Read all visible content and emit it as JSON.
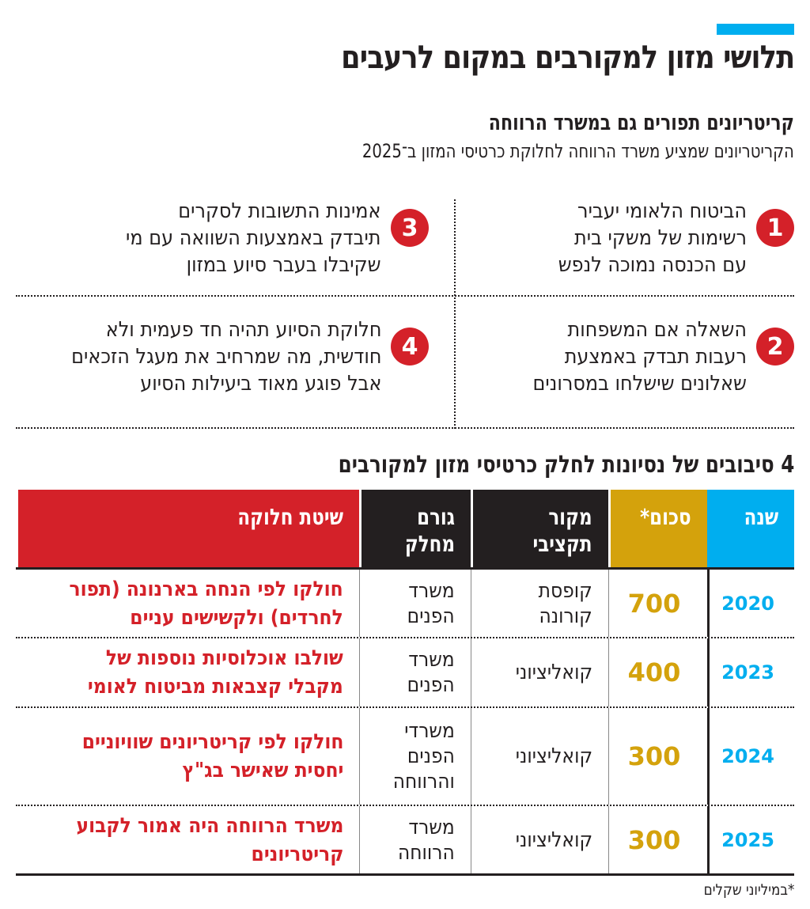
{
  "header": {
    "accent_color": "#00aeef",
    "title": "תלושי מזון למקורבים במקום לרעבים"
  },
  "subheader": {
    "title": "קריטריונים תפורים גם במשרד הרווחה",
    "description": "הקריטריונים שמציע משרד הרווחה לחלוקת כרטיסי המזון ב־2025"
  },
  "criteria": [
    {
      "number": "1",
      "text": "הביטוח הלאומי יעביר\nרשימות של משקי בית\nעם הכנסה נמוכה לנפש"
    },
    {
      "number": "2",
      "text": "השאלה אם המשפחות\nרעבות תבדק באמצעת\nשאלונים שישלחו במסרונים"
    },
    {
      "number": "3",
      "text": "אמינות התשובות לסקרים\nתיבדק באמצעות השוואה עם מי\nשקיבלו בעבר סיוע במזון"
    },
    {
      "number": "4",
      "text": "חלוקת הסיוע תהיה חד פעמית ולא\nחודשית, מה שמרחיב את מעגל הזכאים\nאבל פוגע מאוד ביעילות הסיוע"
    }
  ],
  "table": {
    "title": "4 סיבובים של נסיונות לחלק כרטיסי מזון  למקורבים",
    "headers": {
      "year": "שנה",
      "sum": "סכום*",
      "source": "מקור\nתקציבי",
      "distributor": "גורם\nמחלק",
      "method": "שיטת חלוקה"
    },
    "colors": {
      "year": "#00aeef",
      "sum": "#d4a20c",
      "source": "#231f20",
      "distributor": "#231f20",
      "method": "#d42129"
    },
    "rows": [
      {
        "year": "2020",
        "sum": "700",
        "source": "קופסת\nקורונה",
        "distributor": "משרד\nהפנים",
        "method": "חולקו לפי הנחה בארנונה (תפור\nלחרדים) ולקשישים עניים"
      },
      {
        "year": "2023",
        "sum": "400",
        "source": "קואליציוני",
        "distributor": "משרד\nהפנים",
        "method": "שולבו אוכלוסיות נוספות של\nמקבלי קצבאות מביטוח לאומי"
      },
      {
        "year": "2024",
        "sum": "300",
        "source": "קואליציוני",
        "distributor": "משרדי\nהפנים\nוהרווחה",
        "method": "חולקו לפי קריטריונים שוויוניים\nיחסית שאישר בג\"ץ"
      },
      {
        "year": "2025",
        "sum": "300",
        "source": "קואליציוני",
        "distributor": "משרד\nהרווחה",
        "method": "משרד הרווחה היה אמור לקבוע\nקריטריונים"
      }
    ],
    "footnote": "*במיליוני שקלים"
  },
  "chart_data": {
    "type": "table",
    "title": "4 סיבובים של נסיונות לחלק כרטיסי מזון למקורבים",
    "columns": [
      "שנה",
      "סכום*",
      "מקור תקציבי",
      "גורם מחלק",
      "שיטת חלוקה"
    ],
    "rows": [
      [
        "2020",
        700,
        "קופסת קורונה",
        "משרד הפנים",
        "חולקו לפי הנחה בארנונה (תפור לחרדים) ולקשישים עניים"
      ],
      [
        "2023",
        400,
        "קואליציוני",
        "משרד הפנים",
        "שולבו אוכלוסיות נוספות של מקבלי קצבאות מביטוח לאומי"
      ],
      [
        "2024",
        300,
        "קואליציוני",
        "משרדי הפנים והרווחה",
        "חולקו לפי קריטריונים שוויוניים יחסית שאישר בג\"ץ"
      ],
      [
        "2025",
        300,
        "קואליציוני",
        "משרד הרווחה",
        "משרד הרווחה היה אמור לקבוע קריטריונים"
      ]
    ],
    "note": "*במיליוני שקלים"
  }
}
